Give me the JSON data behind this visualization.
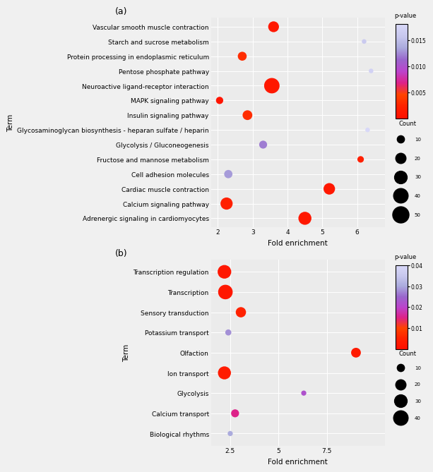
{
  "panel_a": {
    "terms": [
      "Vascular smooth muscle contraction",
      "Starch and sucrose metabolism",
      "Protein processing in endoplasmic reticulum",
      "Pentose phosphate pathway",
      "Neuroactive ligand-receptor interaction",
      "MAPK signaling pathway",
      "Insulin signaling pathway",
      "Glycosaminoglycan biosynthesis - heparan sulfate / heparin",
      "Glycolysis / Gluconeogenesis",
      "Fructose and mannose metabolism",
      "Cell adhesion molecules",
      "Cardiac muscle contraction",
      "Calcium signaling pathway",
      "Adrenergic signaling in cardiomyocytes"
    ],
    "fold_enrichment": [
      3.6,
      6.2,
      2.7,
      6.4,
      3.55,
      2.05,
      2.85,
      6.3,
      3.3,
      6.1,
      2.3,
      5.2,
      2.25,
      4.5
    ],
    "pvalue": [
      0.001,
      0.016,
      0.003,
      0.017,
      0.001,
      0.0005,
      0.003,
      0.018,
      0.012,
      0.002,
      0.013,
      0.001,
      0.002,
      0.001
    ],
    "count": [
      22,
      4,
      15,
      4,
      45,
      10,
      18,
      4,
      12,
      8,
      13,
      25,
      28,
      32
    ],
    "xlim": [
      1.8,
      6.8
    ],
    "xticks": [
      2,
      3,
      4,
      5,
      6
    ],
    "pvalue_min": 0.0,
    "pvalue_max": 0.018,
    "legend_pvalues": [
      0.015,
      0.01,
      0.005
    ],
    "legend_counts": [
      10,
      20,
      30,
      40,
      50
    ]
  },
  "panel_b": {
    "terms": [
      "Transcription regulation",
      "Transcription",
      "Sensory transduction",
      "Potassium transport",
      "Olfaction",
      "Ion transport",
      "Glycolysis",
      "Calcium transport",
      "Biological rhythms"
    ],
    "fold_enrichment": [
      2.2,
      2.25,
      3.05,
      2.4,
      9.0,
      2.2,
      6.3,
      2.75,
      2.5
    ],
    "pvalue": [
      0.002,
      0.002,
      0.005,
      0.028,
      0.003,
      0.003,
      0.022,
      0.015,
      0.03
    ],
    "count": [
      35,
      40,
      20,
      7,
      18,
      32,
      5,
      12,
      5
    ],
    "xlim": [
      1.5,
      10.5
    ],
    "xticks": [
      2.5,
      5.0,
      7.5
    ],
    "pvalue_min": 0.0,
    "pvalue_max": 0.04,
    "legend_pvalues": [
      0.04,
      0.03,
      0.02,
      0.01
    ],
    "legend_counts": [
      10,
      20,
      30,
      40
    ]
  },
  "bg_color": "#f0f0f0",
  "plot_bg_color": "#ebebeb",
  "grid_color": "#ffffff",
  "font_size": 6.5,
  "title_font_size": 9,
  "count_scale": 5.5,
  "cmap_colors": [
    "#ff1100",
    "#ff2200",
    "#ff4400",
    "#dd2288",
    "#bb44cc",
    "#9966cc",
    "#aaaadd",
    "#c8c8ee",
    "#d8d8f8"
  ],
  "label_a": "(a)",
  "label_b": "(b)"
}
